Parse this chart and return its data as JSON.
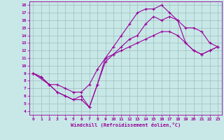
{
  "xlabel": "Windchill (Refroidissement éolien,°C)",
  "bg_color": "#c8e8e8",
  "grid_color": "#9dbdbd",
  "line_color": "#990099",
  "xlim": [
    -0.5,
    23.5
  ],
  "ylim": [
    3.5,
    18.5
  ],
  "xticks": [
    0,
    1,
    2,
    3,
    4,
    5,
    6,
    7,
    8,
    9,
    10,
    11,
    12,
    13,
    14,
    15,
    16,
    17,
    18,
    19,
    20,
    21,
    22,
    23
  ],
  "yticks": [
    4,
    5,
    6,
    7,
    8,
    9,
    10,
    11,
    12,
    13,
    14,
    15,
    16,
    17,
    18
  ],
  "line1_x": [
    0,
    1,
    2,
    3,
    4,
    5,
    6,
    7,
    8,
    9,
    10,
    11,
    12,
    13,
    14,
    15,
    16,
    17,
    18,
    19,
    20,
    21,
    22,
    23
  ],
  "line1_y": [
    9,
    8.5,
    7.5,
    6.5,
    6.0,
    5.5,
    6.0,
    4.5,
    7.5,
    11.0,
    12.5,
    14.0,
    15.5,
    17.0,
    17.5,
    17.5,
    18.0,
    17.0,
    16.0,
    15.0,
    15.0,
    14.5,
    13.0,
    12.5
  ],
  "line2_x": [
    0,
    1,
    2,
    3,
    4,
    5,
    6,
    7,
    8,
    9,
    10,
    11,
    12,
    13,
    14,
    15,
    16,
    17,
    18,
    19,
    20,
    21,
    22,
    23
  ],
  "line2_y": [
    9.0,
    8.5,
    7.5,
    7.5,
    7.0,
    6.5,
    6.5,
    7.5,
    9.5,
    11.0,
    11.5,
    12.0,
    12.5,
    13.0,
    13.5,
    14.0,
    14.5,
    14.5,
    14.0,
    13.0,
    12.0,
    11.5,
    12.0,
    12.5
  ],
  "line3_x": [
    0,
    2,
    3,
    4,
    5,
    6,
    7,
    8,
    9,
    10,
    11,
    12,
    13,
    14,
    15,
    16,
    17,
    18,
    19,
    20,
    21,
    22,
    23
  ],
  "line3_y": [
    9.0,
    7.5,
    6.5,
    6.0,
    5.5,
    5.5,
    4.5,
    7.5,
    10.5,
    11.5,
    12.5,
    13.5,
    14.0,
    15.5,
    16.5,
    16.0,
    16.5,
    16.0,
    13.0,
    12.0,
    11.5,
    12.0,
    12.5
  ]
}
